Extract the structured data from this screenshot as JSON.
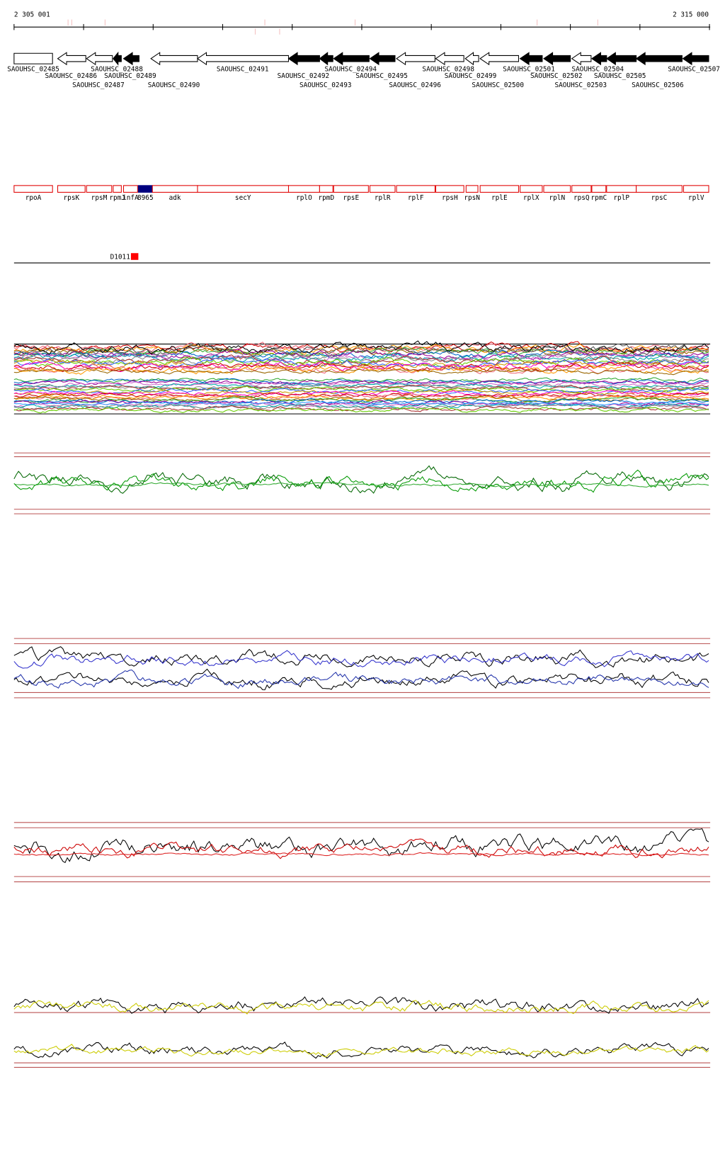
{
  "ruler": {
    "start": "2 305 001",
    "end": "2 315 000"
  },
  "loci": [
    "SAOUHSC_02485",
    "SAOUHSC_02486",
    "SAOUHSC_02487",
    "SAOUHSC_02488",
    "SAOUHSC_02489",
    "SAOUHSC_02490",
    "SAOUHSC_02491",
    "SAOUHSC_02492",
    "SAOUHSC_02493",
    "SAOUHSC_02494",
    "SAOUHSC_02495",
    "SAOUHSC_02496",
    "SAOUHSC_02498",
    "SAOUHSC_02499",
    "SAOUHSC_02500",
    "SAOUHSC_02501",
    "SAOUHSC_02502",
    "SAOUHSC_02503",
    "SAOUHSC_02504",
    "SAOUHSC_02505",
    "SAOUHSC_02506",
    "SAOUHSC_02507"
  ],
  "genes": [
    "rpoA",
    "rpsK",
    "rpsM",
    "rpmJ",
    "infA",
    "8965",
    "adk",
    "secY",
    "rplO",
    "rpmD",
    "rpsE",
    "rplR",
    "rplF",
    "rpsH",
    "rpsN",
    "rplE",
    "rplX",
    "rplN",
    "rpsQ",
    "rpmC",
    "rplP",
    "rpsC",
    "rplV"
  ],
  "feature": "D1011"
}
